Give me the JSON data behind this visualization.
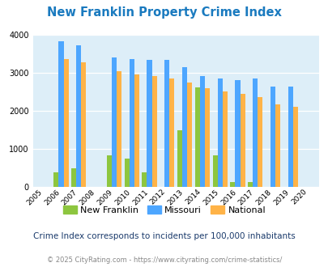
{
  "title": "New Franklin Property Crime Index",
  "years": [
    2005,
    2006,
    2007,
    2008,
    2009,
    2010,
    2011,
    2012,
    2013,
    2014,
    2015,
    2016,
    2017,
    2018,
    2019,
    2020
  ],
  "new_franklin": [
    0,
    390,
    490,
    0,
    830,
    740,
    390,
    0,
    1480,
    2620,
    830,
    120,
    120,
    0,
    0,
    0
  ],
  "missouri": [
    0,
    3830,
    3720,
    0,
    3400,
    3360,
    3330,
    3340,
    3140,
    2920,
    2860,
    2810,
    2840,
    2640,
    2640,
    0
  ],
  "national": [
    0,
    3350,
    3270,
    0,
    3040,
    2950,
    2920,
    2860,
    2740,
    2600,
    2500,
    2450,
    2370,
    2170,
    2100,
    0
  ],
  "new_franklin_color": "#8dc63f",
  "missouri_color": "#4da6ff",
  "national_color": "#ffb347",
  "bg_color": "#ddeef8",
  "ylim": [
    0,
    4000
  ],
  "yticks": [
    0,
    1000,
    2000,
    3000,
    4000
  ],
  "subtitle": "Crime Index corresponds to incidents per 100,000 inhabitants",
  "footer": "© 2025 CityRating.com - https://www.cityrating.com/crime-statistics/",
  "title_color": "#1a7abf",
  "subtitle_color": "#1a3a6b",
  "footer_color": "#888888",
  "legend_labels": [
    "New Franklin",
    "Missouri",
    "National"
  ]
}
